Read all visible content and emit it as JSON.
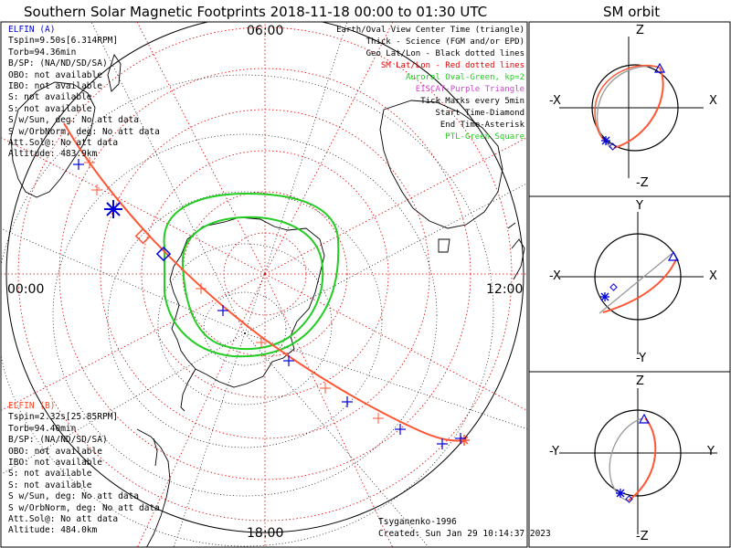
{
  "main_title": "Southern Solar Magnetic Footprints 2018-11-18 00:00 to 01:30 UTC",
  "orbit_title": "SM orbit",
  "time_labels": {
    "top": "06:00",
    "left": "00:00",
    "right": "12:00",
    "bottom": "18:00"
  },
  "elfin_a": {
    "name": "ELFIN (A)",
    "color": "#0000cc",
    "lines": [
      "Tspin=9.50s[6.314RPM]",
      "Torb=94.36min",
      "B/SP: (NA/ND/SD/SA)",
      "OBO: not available",
      "IBO: not available",
      "S: not available",
      "S: not available",
      "S w/Sun, deg: No att data",
      "S w/OrbNorm, deg: No att data",
      "Att.Sol@: No att data",
      "Altitude: 483.9km"
    ]
  },
  "elfin_b": {
    "name": "ELFIN (B)",
    "color": "#ff4422",
    "lines": [
      "Tspin=2.32s[25.85RPM]",
      "Torb=94.40min",
      "B/SP: (NA/ND/SD/SA)",
      "OBO: not available",
      "IBO: not available",
      "S: not available",
      "S: not available",
      "S w/Sun, deg: No att data",
      "S w/OrbNorm, deg: No att data",
      "Att.Sol@: No att data",
      "Altitude: 484.0km"
    ]
  },
  "legend": [
    {
      "text": "Earth/Oval View Center Time (triangle)",
      "color": "#000000"
    },
    {
      "text": "Thick - Science (FGM and/or EPD)",
      "color": "#000000"
    },
    {
      "text": "Geo Lat/Lon - Black dotted lines",
      "color": "#000000"
    },
    {
      "text": "SM Lat/Lon - Red dotted lines",
      "color": "#dd0000"
    },
    {
      "text": "Auroral Oval-Green, kp=2",
      "color": "#22cc22"
    },
    {
      "text": "EISCAT-Purple Triangle",
      "color": "#cc44cc"
    },
    {
      "text": "Tick Marks every 5min",
      "color": "#000000"
    },
    {
      "text": "Start Time-Diamond",
      "color": "#000000"
    },
    {
      "text": "End Time-Asterisk",
      "color": "#000000"
    },
    {
      "text": "PTL-Green Square",
      "color": "#22cc22"
    }
  ],
  "footer": {
    "credit": "Tsyganenko-1996",
    "created": "Created: Sun Jan 29 10:14:37 2023"
  },
  "orbit_panels": [
    {
      "top": "Z",
      "bottom": "-Z",
      "left": "-X",
      "right": "X"
    },
    {
      "top": "Y",
      "bottom": "-Y",
      "left": "-X",
      "right": "X"
    },
    {
      "top": "Z",
      "bottom": "-Z",
      "left": "-Y",
      "right": "Y"
    }
  ],
  "colors": {
    "elfin_a": "#0000dd",
    "elfin_b": "#ff5533",
    "oval": "#22cc22",
    "sm_grid": "#dd0000",
    "geo_grid": "#000000"
  }
}
